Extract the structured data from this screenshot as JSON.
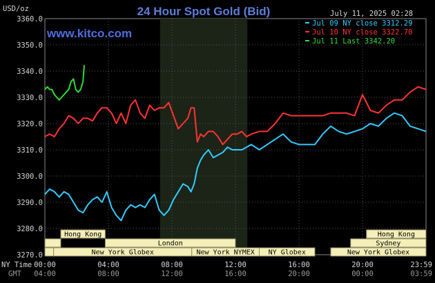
{
  "chart_data": {
    "type": "line",
    "title": "24 Hour Spot Gold (Bid)",
    "unit_label": "USD/oz",
    "date_label": "July 11, 2025 02:28",
    "site_label": "www.kitco.com",
    "ylim": [
      3270,
      3360
    ],
    "yticks": [
      "3360.0",
      "3350.0",
      "3340.0",
      "3330.0",
      "3320.0",
      "3310.0",
      "3300.0",
      "3290.0",
      "3280.0",
      "3270.0"
    ],
    "x_range_hours": [
      0,
      24
    ],
    "shaded_hours": [
      7.25,
      12.75
    ],
    "x_row_labels": [
      "NY Time",
      "GMT"
    ],
    "xticks_ny": [
      "00:00",
      "04:00",
      "08:00",
      "12:00",
      "16:00",
      "20:00",
      "23:59"
    ],
    "xticks_gmt": [
      "04:00",
      "08:00",
      "12:00",
      "16:00",
      "20:00",
      "00:00",
      "03:59"
    ],
    "legend": [
      {
        "text": "Jul 09 NY close 3312.29",
        "color": "#33ccff"
      },
      {
        "text": "Jul 10 NY close 3322.70",
        "color": "#ff3333"
      },
      {
        "text": "Jul 11 Last 3342.20",
        "color": "#33dd33"
      }
    ],
    "sessions": [
      {
        "label": "Hong Kong",
        "start": 1.0,
        "end": 3.8,
        "row": 0
      },
      {
        "label": "",
        "start": 0.0,
        "end": 1.0,
        "row": 1
      },
      {
        "label": "London",
        "start": 3.8,
        "end": 12.0,
        "row": 1
      },
      {
        "label": "",
        "start": 0.0,
        "end": 0.55,
        "row": 2
      },
      {
        "label": "New York Globex",
        "start": 0.55,
        "end": 9.25,
        "row": 2
      },
      {
        "label": "New York NYMEX",
        "start": 9.25,
        "end": 13.5,
        "row": 2
      },
      {
        "label": "NY Globex",
        "start": 13.5,
        "end": 17.0,
        "row": 2
      },
      {
        "label": "Hong Kong",
        "start": 20.25,
        "end": 24.0,
        "row": 0
      },
      {
        "label": "Sydney",
        "start": 19.25,
        "end": 24.0,
        "row": 1
      },
      {
        "label": "New York Globex",
        "start": 18.0,
        "end": 24.0,
        "row": 2
      }
    ],
    "series": [
      {
        "name": "Jul 09 NY close 3312.29",
        "color": "#33ccff",
        "x": [
          0,
          0.3,
          0.6,
          0.9,
          1.2,
          1.5,
          1.8,
          2.1,
          2.4,
          2.7,
          3.0,
          3.3,
          3.6,
          3.9,
          4.2,
          4.5,
          4.8,
          5.1,
          5.4,
          5.7,
          6.0,
          6.3,
          6.6,
          6.9,
          7.2,
          7.5,
          7.8,
          8.1,
          8.4,
          8.7,
          9.0,
          9.2,
          9.4,
          9.6,
          9.8,
          10.0,
          10.3,
          10.6,
          10.9,
          11.2,
          11.5,
          11.8,
          12.1,
          12.4,
          12.7,
          13.0,
          13.5,
          14.0,
          14.5,
          15.0,
          15.5,
          16.0,
          16.5,
          17.0,
          17.5,
          18.0,
          18.5,
          19.0,
          19.5,
          20.0,
          20.5,
          21.0,
          21.5,
          22.0,
          22.5,
          23.0,
          23.5,
          24.0
        ],
        "values": [
          3293,
          3295,
          3294,
          3292,
          3294,
          3293,
          3290,
          3287,
          3286,
          3289,
          3291,
          3292,
          3290,
          3294,
          3288,
          3285,
          3283,
          3287,
          3289,
          3288,
          3289,
          3288,
          3291,
          3293,
          3287,
          3285,
          3287,
          3291,
          3294,
          3297,
          3296,
          3294,
          3297,
          3303,
          3306,
          3308,
          3310,
          3307,
          3308,
          3309,
          3311,
          3310,
          3310,
          3310,
          3311,
          3312,
          3310,
          3312,
          3314,
          3316,
          3313,
          3312,
          3312,
          3312,
          3316,
          3319,
          3317,
          3316,
          3317,
          3318,
          3320,
          3319,
          3322,
          3324,
          3323,
          3319,
          3318,
          3317
        ]
      },
      {
        "name": "Jul 10 NY close 3322.70",
        "color": "#ff3333",
        "x": [
          0,
          0.3,
          0.6,
          0.9,
          1.2,
          1.5,
          1.8,
          2.1,
          2.4,
          2.7,
          3.0,
          3.3,
          3.6,
          3.9,
          4.2,
          4.5,
          4.8,
          5.1,
          5.4,
          5.7,
          6.0,
          6.3,
          6.6,
          6.9,
          7.2,
          7.5,
          7.8,
          8.1,
          8.4,
          8.7,
          9.0,
          9.2,
          9.4,
          9.6,
          9.8,
          10.0,
          10.3,
          10.6,
          10.9,
          11.2,
          11.5,
          11.8,
          12.1,
          12.4,
          12.7,
          13.0,
          13.5,
          14.0,
          14.5,
          15.0,
          15.5,
          16.0,
          16.5,
          17.0,
          17.5,
          18.0,
          18.5,
          19.0,
          19.5,
          20.0,
          20.5,
          21.0,
          21.5,
          22.0,
          22.5,
          23.0,
          23.5,
          24.0
        ],
        "values": [
          3315,
          3316,
          3315,
          3318,
          3320,
          3323,
          3322,
          3320,
          3322,
          3322,
          3321,
          3324,
          3326,
          3326,
          3324,
          3320,
          3324,
          3320,
          3327,
          3329,
          3324,
          3322,
          3327,
          3325,
          3326,
          3326,
          3328,
          3323,
          3318,
          3320,
          3322,
          3326,
          3326,
          3313,
          3316,
          3315,
          3317,
          3317,
          3315,
          3312,
          3314,
          3316,
          3316,
          3317,
          3315,
          3316,
          3317,
          3317,
          3320,
          3324,
          3323,
          3323,
          3323,
          3323,
          3323,
          3324,
          3324,
          3324,
          3323,
          3331,
          3325,
          3324,
          3327,
          3329,
          3329,
          3332,
          3334,
          3333
        ]
      },
      {
        "name": "Jul 11 Last 3342.20",
        "color": "#33dd33",
        "x": [
          0,
          0.15,
          0.3,
          0.45,
          0.6,
          0.75,
          0.9,
          1.05,
          1.2,
          1.35,
          1.5,
          1.65,
          1.8,
          1.95,
          2.1,
          2.25,
          2.4,
          2.48
        ],
        "values": [
          3333,
          3334,
          3333,
          3333,
          3331,
          3330,
          3329,
          3330,
          3331,
          3332,
          3333,
          3336,
          3337,
          3333,
          3332,
          3333,
          3336,
          3342.2
        ]
      }
    ]
  }
}
